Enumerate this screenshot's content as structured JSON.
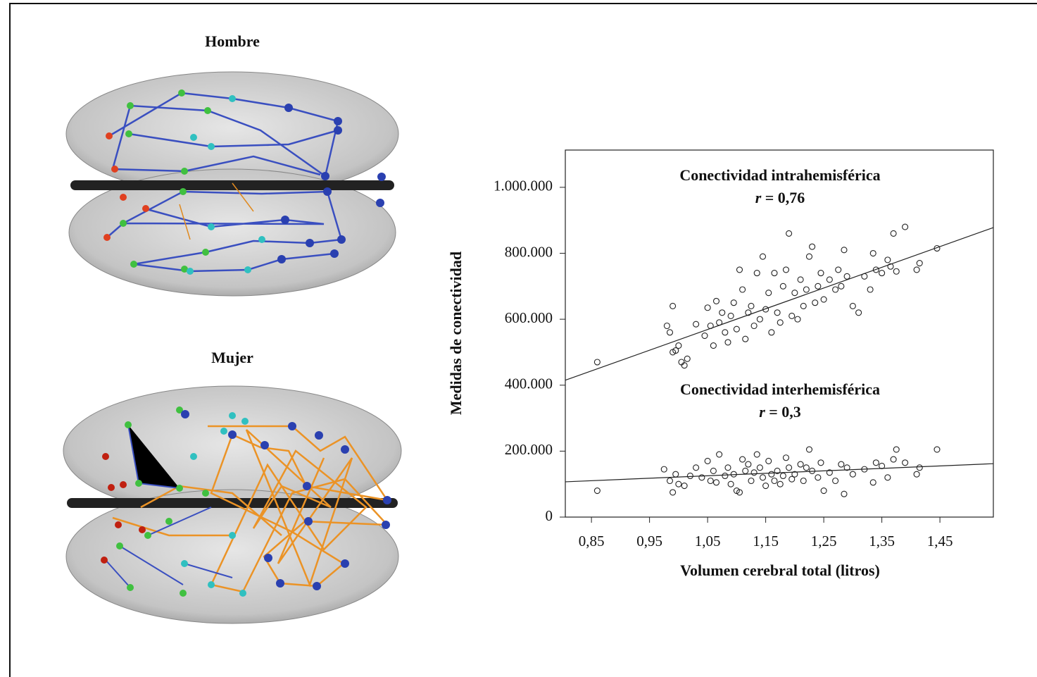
{
  "panels": [
    {
      "label": "Hombre"
    },
    {
      "label": "Mujer"
    }
  ],
  "chart_data": {
    "type": "scatter",
    "xlabel": "Volumen cerebral total (litros)",
    "ylabel": "Medidas de conectividad",
    "xlim": [
      0.805,
      1.542
    ],
    "ylim": [
      0,
      1113000
    ],
    "xticks": [
      {
        "value": 0.85,
        "label": "0,85"
      },
      {
        "value": 0.95,
        "label": "0,95"
      },
      {
        "value": 1.05,
        "label": "1,05"
      },
      {
        "value": 1.15,
        "label": "1,15"
      },
      {
        "value": 1.25,
        "label": "1,25"
      },
      {
        "value": 1.35,
        "label": "1,35"
      },
      {
        "value": 1.45,
        "label": "1,45"
      }
    ],
    "yticks": [
      0,
      {
        "value": 200000,
        "label": "200.000"
      },
      {
        "value": 400000,
        "label": "400.000"
      },
      {
        "value": 600000,
        "label": "600.000"
      },
      {
        "value": 800000,
        "label": "800.000"
      },
      {
        "value": 1000000,
        "label": "1.000.000"
      }
    ],
    "series": [
      {
        "name": "Conectividad intrahemisférica",
        "annotation": "r = 0,76",
        "color": "#222",
        "x": [
          0.86,
          0.98,
          0.985,
          0.99,
          0.99,
          0.995,
          1.0,
          1.005,
          1.01,
          1.015,
          1.03,
          1.045,
          1.05,
          1.055,
          1.06,
          1.065,
          1.07,
          1.075,
          1.08,
          1.085,
          1.09,
          1.095,
          1.1,
          1.105,
          1.11,
          1.115,
          1.12,
          1.125,
          1.13,
          1.135,
          1.14,
          1.145,
          1.15,
          1.155,
          1.16,
          1.165,
          1.17,
          1.175,
          1.18,
          1.185,
          1.19,
          1.195,
          1.2,
          1.205,
          1.21,
          1.215,
          1.22,
          1.225,
          1.23,
          1.235,
          1.24,
          1.245,
          1.25,
          1.26,
          1.27,
          1.275,
          1.28,
          1.285,
          1.29,
          1.3,
          1.31,
          1.32,
          1.33,
          1.335,
          1.34,
          1.35,
          1.36,
          1.365,
          1.37,
          1.375,
          1.39,
          1.41,
          1.415,
          1.445
        ],
        "values": [
          470000,
          580000,
          560000,
          500000,
          640000,
          505000,
          520000,
          470000,
          460000,
          480000,
          585000,
          550000,
          635000,
          580000,
          520000,
          655000,
          590000,
          620000,
          560000,
          530000,
          610000,
          650000,
          570000,
          750000,
          690000,
          540000,
          620000,
          640000,
          580000,
          740000,
          600000,
          790000,
          630000,
          680000,
          560000,
          740000,
          620000,
          590000,
          700000,
          750000,
          860000,
          610000,
          680000,
          600000,
          720000,
          640000,
          690000,
          790000,
          820000,
          650000,
          700000,
          740000,
          660000,
          720000,
          690000,
          750000,
          700000,
          810000,
          730000,
          640000,
          620000,
          730000,
          690000,
          800000,
          750000,
          740000,
          780000,
          760000,
          860000,
          745000,
          880000,
          750000,
          770000,
          815000
        ],
        "fit": {
          "x": [
            0.805,
            1.542
          ],
          "values": [
            415000,
            878000
          ]
        }
      },
      {
        "name": "Conectividad interhemisférica",
        "annotation": "r = 0,3",
        "color": "#222",
        "x": [
          0.86,
          0.975,
          0.985,
          0.99,
          0.995,
          1.0,
          1.01,
          1.02,
          1.03,
          1.04,
          1.05,
          1.055,
          1.06,
          1.065,
          1.07,
          1.08,
          1.085,
          1.09,
          1.095,
          1.1,
          1.105,
          1.11,
          1.115,
          1.12,
          1.125,
          1.13,
          1.135,
          1.14,
          1.145,
          1.15,
          1.155,
          1.16,
          1.165,
          1.17,
          1.175,
          1.18,
          1.185,
          1.19,
          1.195,
          1.2,
          1.21,
          1.215,
          1.22,
          1.225,
          1.23,
          1.24,
          1.245,
          1.25,
          1.26,
          1.27,
          1.28,
          1.285,
          1.29,
          1.3,
          1.32,
          1.335,
          1.34,
          1.35,
          1.36,
          1.37,
          1.375,
          1.39,
          1.41,
          1.415,
          1.445
        ],
        "values": [
          80000,
          145000,
          110000,
          75000,
          130000,
          100000,
          95000,
          125000,
          150000,
          120000,
          170000,
          110000,
          140000,
          105000,
          190000,
          125000,
          150000,
          100000,
          130000,
          80000,
          75000,
          175000,
          140000,
          160000,
          110000,
          135000,
          190000,
          150000,
          120000,
          95000,
          170000,
          130000,
          110000,
          140000,
          100000,
          125000,
          180000,
          150000,
          115000,
          130000,
          160000,
          110000,
          150000,
          205000,
          140000,
          120000,
          165000,
          80000,
          135000,
          110000,
          160000,
          70000,
          150000,
          130000,
          145000,
          105000,
          165000,
          155000,
          120000,
          175000,
          205000,
          165000,
          130000,
          150000,
          205000
        ],
        "fit": {
          "x": [
            0.805,
            1.542
          ],
          "values": [
            107000,
            162000
          ]
        }
      }
    ]
  }
}
